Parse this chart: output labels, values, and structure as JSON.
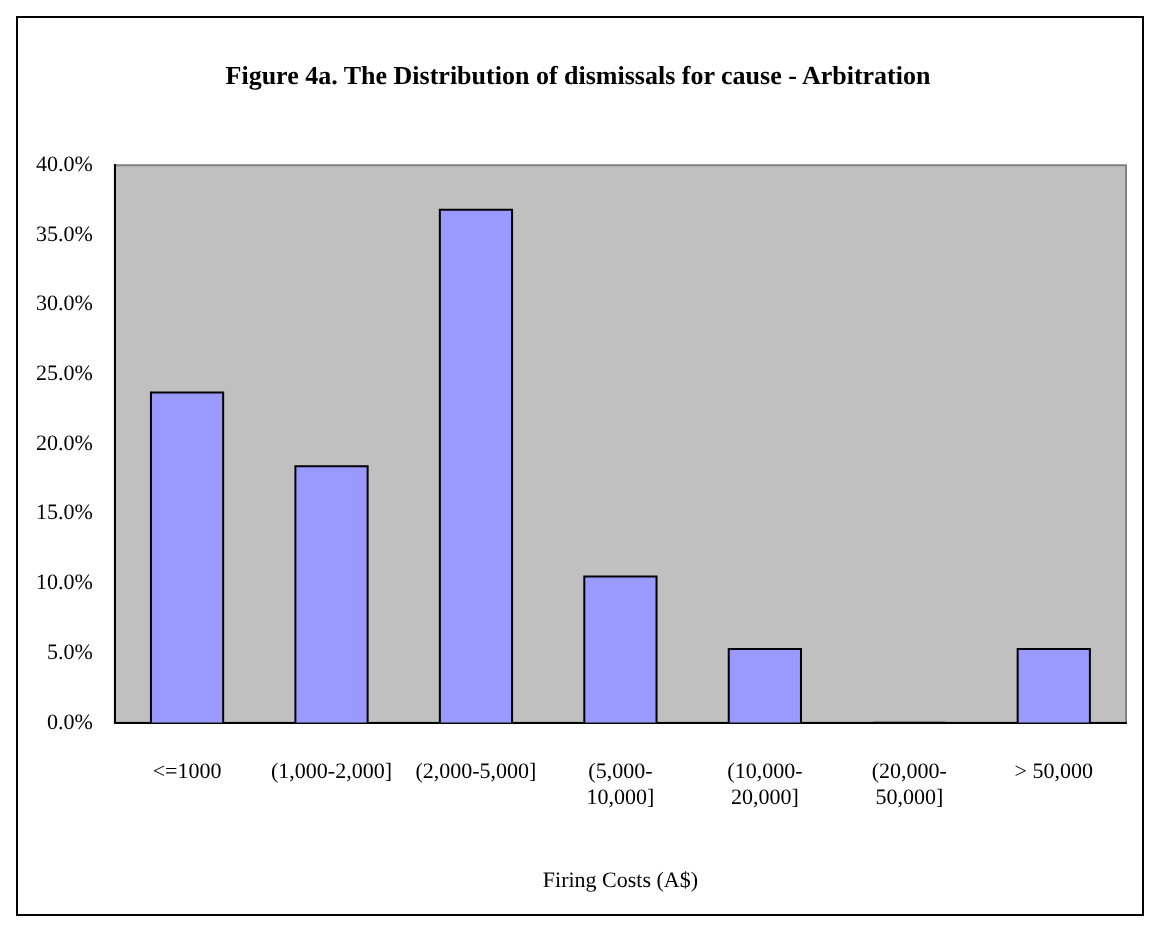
{
  "chart_data": {
    "type": "bar",
    "title": "Figure 4a. The Distribution of dismissals for cause - Arbitration",
    "xlabel": "Firing Costs (A$)",
    "categories": [
      "<=1000",
      "(1,000-2,000]",
      "(2,000-5,000]",
      "(5,000-10,000]",
      "(10,000-20,000]",
      "(20,000-50,000]",
      "> 50,000"
    ],
    "values": [
      23.7,
      18.4,
      36.8,
      10.5,
      5.3,
      0,
      5.3
    ],
    "color": "#9999ff",
    "ylim": [
      0,
      40
    ],
    "yticks": [
      {
        "value": 0,
        "label": "0.0%"
      },
      {
        "value": 5,
        "label": "5.0%"
      },
      {
        "value": 10,
        "label": "10.0%"
      },
      {
        "value": 15,
        "label": "15.0%"
      },
      {
        "value": 20,
        "label": "20.0%"
      },
      {
        "value": 25,
        "label": "25.0%"
      },
      {
        "value": 30,
        "label": "30.0%"
      },
      {
        "value": 35,
        "label": "35.0%"
      },
      {
        "value": 40,
        "label": "40.0%"
      }
    ]
  }
}
